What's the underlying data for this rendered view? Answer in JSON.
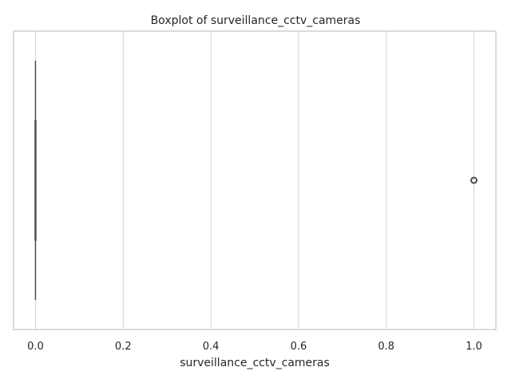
{
  "chart_data": {
    "type": "boxplot",
    "orientation": "horizontal",
    "title": "Boxplot of surveillance_cctv_cameras",
    "xlabel": "surveillance_cctv_cameras",
    "ylabel": "",
    "xlim": [
      -0.05,
      1.05
    ],
    "x_ticks": [
      0.0,
      0.2,
      0.4,
      0.6,
      0.8,
      1.0
    ],
    "x_tick_labels": [
      "0.0",
      "0.2",
      "0.4",
      "0.6",
      "0.8",
      "1.0"
    ],
    "grid": "vertical",
    "box": {
      "q1": 0,
      "median": 0,
      "q3": 0,
      "whisker_low": 0,
      "whisker_high": 0
    },
    "outliers": [
      1.0
    ],
    "colors": {
      "frame": "#cccccc",
      "grid": "#d9d9d9",
      "box_line": "#4d4d4d",
      "text": "#262626"
    }
  }
}
